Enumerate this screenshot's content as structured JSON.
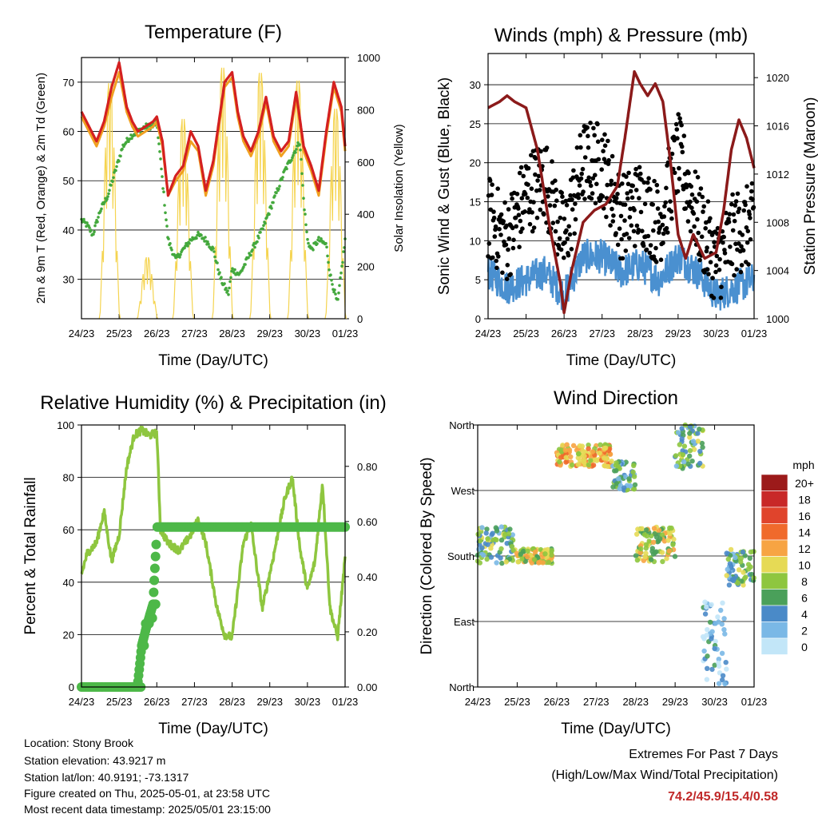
{
  "chart_data": [
    {
      "type": "line",
      "title": "Temperature (F)",
      "xlabel": "Time (Day/UTC)",
      "ylabel": "2m & 9m T (Red, Orange) & 2m Td (Green)",
      "ylabel_right": "Solar Insolation (Yellow)",
      "x_ticks": [
        "24/23",
        "25/23",
        "26/23",
        "27/23",
        "28/23",
        "29/23",
        "30/23",
        "01/23"
      ],
      "ylim": [
        22,
        75
      ],
      "y_ticks": [
        30,
        40,
        50,
        60,
        70
      ],
      "ylim_right": [
        0,
        1000
      ],
      "y_ticks_right": [
        0,
        200,
        400,
        600,
        800,
        1000
      ],
      "grid": "horizontal",
      "series": [
        {
          "color": "#d42020",
          "axis": "left",
          "days": [
            0,
            0.2,
            0.4,
            0.6,
            0.8,
            1.0,
            1.2,
            1.35,
            1.5,
            1.7,
            1.9,
            2.0,
            2.15,
            2.3,
            2.5,
            2.7,
            2.9,
            3.1,
            3.3,
            3.5,
            3.8,
            4.0,
            4.15,
            4.3,
            4.5,
            4.7,
            4.9,
            5.1,
            5.3,
            5.5,
            5.7,
            5.9,
            6.1,
            6.3,
            6.5,
            6.7,
            6.9,
            7.0
          ],
          "values": [
            64,
            61,
            58,
            62,
            69,
            74,
            65,
            62,
            60,
            61,
            62,
            63,
            58,
            47,
            51,
            53,
            60,
            57,
            48,
            54,
            70,
            72,
            64,
            59,
            56,
            60,
            67,
            59,
            56,
            58,
            68,
            57,
            53,
            48,
            60,
            70,
            65,
            57
          ]
        },
        {
          "color": "#f0a020",
          "axis": "left",
          "days": [
            0,
            0.2,
            0.4,
            0.6,
            0.8,
            1.0,
            1.2,
            1.35,
            1.5,
            1.7,
            1.9,
            2.0,
            2.15,
            2.3,
            2.5,
            2.7,
            2.9,
            3.1,
            3.3,
            3.5,
            3.8,
            4.0,
            4.15,
            4.3,
            4.5,
            4.7,
            4.9,
            5.1,
            5.3,
            5.5,
            5.7,
            5.9,
            6.1,
            6.3,
            6.5,
            6.7,
            6.9,
            7.0
          ],
          "values": [
            63,
            60,
            57,
            61,
            67,
            72,
            64,
            61,
            59,
            60,
            61,
            62,
            57,
            47,
            50,
            52,
            58,
            56,
            47,
            53,
            69,
            71,
            63,
            58,
            55,
            59,
            66,
            58,
            55,
            57,
            67,
            56,
            52,
            47,
            59,
            69,
            64,
            56
          ]
        },
        {
          "color": "#43a83c",
          "axis": "left",
          "days": [
            0,
            0.15,
            0.3,
            0.5,
            0.7,
            0.9,
            1.1,
            1.3,
            1.5,
            1.7,
            1.9,
            2.0,
            2.15,
            2.3,
            2.5,
            2.7,
            2.9,
            3.1,
            3.3,
            3.5,
            3.7,
            3.9,
            4.0,
            4.2,
            4.4,
            4.6,
            4.8,
            5.0,
            5.2,
            5.4,
            5.6,
            5.8,
            5.9,
            6.0,
            6.1,
            6.3,
            6.5,
            6.6,
            6.8,
            7.0
          ],
          "values": [
            42,
            41,
            39,
            44,
            47,
            52,
            57,
            59,
            60,
            61,
            61,
            62,
            50,
            38,
            34,
            36,
            38,
            39,
            38,
            36,
            30,
            27,
            32,
            31,
            34,
            37,
            40,
            44,
            48,
            52,
            55,
            58,
            46,
            38,
            36,
            38,
            37,
            31,
            25,
            38
          ]
        },
        {
          "color": "#f5d450",
          "axis": "right",
          "peaks": [
            {
              "day": 0.75,
              "value": 920
            },
            {
              "day": 1.75,
              "value": 240
            },
            {
              "day": 2.7,
              "value": 780
            },
            {
              "day": 3.75,
              "value": 980
            },
            {
              "day": 4.75,
              "value": 960
            },
            {
              "day": 5.75,
              "value": 930
            },
            {
              "day": 6.75,
              "value": 820
            }
          ]
        }
      ]
    },
    {
      "type": "scatter",
      "title": "Winds (mph) & Pressure (mb)",
      "xlabel": "Time (Day/UTC)",
      "ylabel": "Sonic Wind & Gust (Blue, Black)",
      "ylabel_right": "Station Pressure (Maroon)",
      "x_ticks": [
        "24/23",
        "25/23",
        "26/23",
        "27/23",
        "28/23",
        "29/23",
        "30/23",
        "01/23"
      ],
      "ylim": [
        0,
        34
      ],
      "y_ticks": [
        0,
        5,
        10,
        15,
        20,
        25,
        30
      ],
      "ylim_right": [
        1000,
        1022
      ],
      "y_ticks_right": [
        1000,
        1004,
        1008,
        1012,
        1016,
        1020
      ],
      "grid": "horizontal",
      "series": [
        {
          "color": "#8b1a1a",
          "axis": "right",
          "type": "line",
          "days": [
            0,
            0.3,
            0.5,
            0.7,
            1.0,
            1.3,
            1.6,
            1.9,
            2.0,
            2.2,
            2.5,
            2.8,
            3.1,
            3.4,
            3.6,
            3.85,
            4.0,
            4.2,
            4.4,
            4.6,
            4.8,
            5.0,
            5.2,
            5.4,
            5.7,
            6.0,
            6.2,
            6.4,
            6.6,
            6.8,
            7.0
          ],
          "values": [
            1017.5,
            1018,
            1018.5,
            1018,
            1017.5,
            1014,
            1008,
            1003,
            1000.5,
            1004,
            1008,
            1009,
            1009.5,
            1011,
            1015,
            1020.5,
            1019.5,
            1018.5,
            1019.5,
            1018,
            1013,
            1007,
            1005,
            1007,
            1005,
            1005.5,
            1009,
            1014,
            1016.5,
            1015,
            1012.5
          ]
        },
        {
          "color": "#000000",
          "axis": "left",
          "name": "",
          "days": [
            0,
            0.5,
            1.0,
            1.5,
            2.0,
            2.5,
            3.0,
            3.5,
            4.0,
            4.5,
            5.0,
            5.5,
            6.0,
            6.5,
            7.0
          ],
          "values": [
            13,
            10,
            16,
            18,
            10,
            20,
            20,
            13,
            15,
            12,
            21,
            13,
            7,
            11,
            12
          ]
        },
        {
          "color": "#4a90d0",
          "axis": "left",
          "days": [
            0,
            0.5,
            1.0,
            1.5,
            2.0,
            2.5,
            3.0,
            3.5,
            4.0,
            4.5,
            5.0,
            5.5,
            6.0,
            6.5,
            7.0
          ],
          "values": [
            6,
            4,
            5,
            6,
            3,
            8,
            8,
            6,
            7,
            5,
            8,
            6,
            3,
            4,
            5
          ]
        }
      ]
    },
    {
      "type": "line",
      "title": "Relative Humidity (%) & Precipitation (in)",
      "xlabel": "Time (Day/UTC)",
      "ylabel": "Percent & Total Rainfall",
      "x_ticks": [
        "24/23",
        "25/23",
        "26/23",
        "27/23",
        "28/23",
        "29/23",
        "30/23",
        "01/23"
      ],
      "ylim": [
        0,
        100
      ],
      "y_ticks": [
        0,
        20,
        40,
        60,
        80,
        100
      ],
      "ylim_right": [
        0,
        0.95
      ],
      "y_ticks_right": [
        0.0,
        0.2,
        0.4,
        0.6,
        0.8
      ],
      "y_ticks_right_labels": [
        "0.00",
        "0.20",
        "0.40",
        "0.60",
        "0.80"
      ],
      "grid": "horizontal",
      "series": [
        {
          "color": "#8ec63f",
          "axis": "left",
          "days": [
            0,
            0.15,
            0.4,
            0.6,
            0.8,
            1.0,
            1.2,
            1.4,
            1.6,
            1.8,
            2.0,
            2.1,
            2.3,
            2.6,
            2.9,
            3.1,
            3.3,
            3.6,
            3.8,
            4.0,
            4.3,
            4.5,
            4.8,
            5.1,
            5.4,
            5.6,
            5.8,
            6.0,
            6.2,
            6.4,
            6.6,
            6.8,
            7.0
          ],
          "values": [
            43,
            51,
            55,
            67,
            48,
            58,
            84,
            96,
            98,
            96,
            97,
            60,
            55,
            52,
            58,
            64,
            55,
            30,
            20,
            19,
            55,
            62,
            30,
            50,
            72,
            80,
            53,
            37,
            48,
            78,
            30,
            19,
            49
          ]
        },
        {
          "color": "#4db848",
          "axis": "right",
          "type": "steps",
          "days": [
            0,
            1.5,
            1.6,
            1.7,
            1.8,
            1.9,
            2.0,
            7.0
          ],
          "values": [
            0.0,
            0.0,
            0.15,
            0.23,
            0.25,
            0.3,
            0.58,
            0.58
          ]
        }
      ]
    },
    {
      "type": "scatter",
      "title": "Wind Direction",
      "xlabel": "Time (Day/UTC)",
      "ylabel": "Direction (Colored By Speed)",
      "x_ticks": [
        "24/23",
        "25/23",
        "26/23",
        "27/23",
        "28/23",
        "29/23",
        "30/23",
        "01/23"
      ],
      "y_ticks": [
        "North",
        "East",
        "South",
        "West",
        "North"
      ],
      "ylim": [
        0,
        360
      ],
      "grid": "horizontal",
      "legend_title": "mph",
      "legend_labels": [
        "20+",
        "18",
        "16",
        "14",
        "12",
        "10",
        "8",
        "6",
        "4",
        "2",
        "0"
      ],
      "legend_colors": [
        "#9c1a1a",
        "#c82828",
        "#e0442c",
        "#f06a2c",
        "#f7a443",
        "#e6da55",
        "#8ec63f",
        "#4aa05a",
        "#4a8ac8",
        "#7ab8e6",
        "#c2e6f8"
      ],
      "clusters": [
        {
          "day_start": 0,
          "day_end": 0.9,
          "dir_center": 195,
          "dir_spread": 25,
          "speed": 6
        },
        {
          "day_start": 0.9,
          "day_end": 1.9,
          "dir_center": 180,
          "dir_spread": 10,
          "speed": 9
        },
        {
          "day_start": 2.0,
          "day_end": 3.4,
          "dir_center": 318,
          "dir_spread": 15,
          "speed": 11
        },
        {
          "day_start": 3.4,
          "day_end": 4.0,
          "dir_center": 290,
          "dir_spread": 20,
          "speed": 5
        },
        {
          "day_start": 4.0,
          "day_end": 5.0,
          "dir_center": 195,
          "dir_spread": 25,
          "speed": 9
        },
        {
          "day_start": 5.0,
          "day_end": 5.7,
          "dir_center": 330,
          "dir_spread": 30,
          "speed": 6
        },
        {
          "day_start": 5.7,
          "day_end": 6.3,
          "dir_center": 60,
          "dir_spread": 60,
          "speed": 2
        },
        {
          "day_start": 6.3,
          "day_end": 7.0,
          "dir_center": 165,
          "dir_spread": 25,
          "speed": 6
        }
      ]
    }
  ],
  "info": {
    "location": "Location: Stony Brook",
    "elevation": "Station elevation: 43.9217 m",
    "latlon": "Station lat/lon: 40.9191; -73.1317",
    "created": "Figure created on Thu, 2025-05-01, at 23:58 UTC",
    "recent": "Most recent data timestamp: 2025/05/01 23:15:00"
  },
  "extremes": {
    "title1": "Extremes For Past 7 Days",
    "title2": "(High/Low/Max Wind/Total Precipitation)",
    "values": "74.2/45.9/15.4/0.58"
  }
}
